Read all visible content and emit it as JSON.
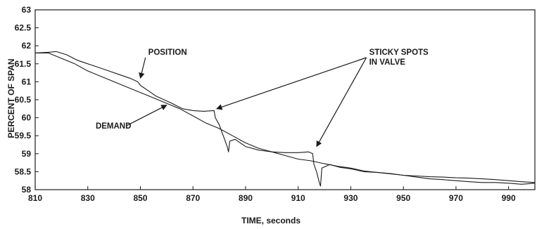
{
  "chart_data": {
    "type": "line",
    "xlabel": "TIME, seconds",
    "ylabel": "PERCENT OF SPAN",
    "xlim": [
      810,
      1000
    ],
    "ylim": [
      58,
      63
    ],
    "xticks": [
      "810",
      "830",
      "850",
      "870",
      "890",
      "910",
      "930",
      "950",
      "970",
      "990"
    ],
    "yticks": [
      "58",
      "58.5",
      "59",
      "59.5",
      "60",
      "60.5",
      "61",
      "61.5",
      "62",
      "62.5",
      "63"
    ],
    "grid": false,
    "series": [
      {
        "name": "POSITION",
        "x": [
          810,
          815,
          818,
          822,
          826,
          830,
          834,
          838,
          842,
          846,
          849,
          850,
          853,
          856,
          859,
          862,
          866,
          870,
          874,
          878,
          878.5,
          880,
          881,
          882,
          883,
          883.5,
          884,
          886,
          890,
          895,
          900,
          905,
          910,
          914,
          915.5,
          916,
          917,
          918,
          918.5,
          919,
          922,
          926,
          930,
          935,
          940,
          945,
          950,
          955,
          960,
          965,
          970,
          975,
          980,
          985,
          990,
          995,
          1000
        ],
        "values": [
          61.8,
          61.82,
          61.84,
          61.75,
          61.6,
          61.5,
          61.4,
          61.3,
          61.2,
          61.1,
          61.0,
          60.9,
          60.75,
          60.6,
          60.5,
          60.4,
          60.25,
          60.2,
          60.18,
          60.2,
          60.0,
          59.8,
          59.6,
          59.4,
          59.2,
          59.05,
          59.35,
          59.4,
          59.2,
          59.1,
          59.05,
          59.03,
          59.03,
          59.05,
          59.0,
          58.7,
          58.5,
          58.2,
          58.1,
          58.6,
          58.7,
          58.62,
          58.58,
          58.5,
          58.48,
          58.45,
          58.4,
          58.38,
          58.36,
          58.35,
          58.33,
          58.32,
          58.3,
          58.28,
          58.25,
          58.22,
          58.2
        ]
      },
      {
        "name": "DEMAND",
        "x": [
          810,
          815,
          820,
          825,
          830,
          835,
          840,
          845,
          850,
          855,
          860,
          865,
          870,
          875,
          880,
          885,
          890,
          895,
          900,
          905,
          910,
          915,
          920,
          925,
          930,
          935,
          940,
          945,
          950,
          955,
          960,
          965,
          970,
          975,
          980,
          985,
          990,
          995,
          1000
        ],
        "values": [
          61.8,
          61.8,
          61.65,
          61.5,
          61.3,
          61.15,
          61.0,
          60.85,
          60.7,
          60.55,
          60.4,
          60.25,
          60.05,
          59.85,
          59.7,
          59.5,
          59.3,
          59.15,
          59.05,
          58.95,
          58.85,
          58.8,
          58.72,
          58.65,
          58.6,
          58.52,
          58.48,
          58.44,
          58.4,
          58.35,
          58.3,
          58.28,
          58.25,
          58.22,
          58.2,
          58.2,
          58.18,
          58.15,
          58.18
        ]
      }
    ],
    "annotations": [
      {
        "text": "POSITION",
        "x": 853,
        "y": 61.75,
        "arrow_to": [
          850,
          61.1
        ]
      },
      {
        "text": "DEMAND",
        "x": 833,
        "y": 59.7,
        "arrow_to": [
          860,
          60.35
        ]
      },
      {
        "text": "STICKY SPOTS",
        "text2": "IN VALVE",
        "x": 937,
        "y": 61.75,
        "arrow_to": [
          [
            879,
            60.25
          ],
          [
            917,
            59.2
          ]
        ]
      }
    ]
  }
}
